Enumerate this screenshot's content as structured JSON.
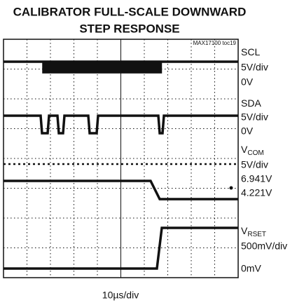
{
  "title": [
    "CALIBRATOR FULL-SCALE DOWNWARD",
    "STEP RESPONSE"
  ],
  "tag": "MAX17100 toc19",
  "channels": [
    {
      "name": "SCL",
      "sub": "",
      "labels": [
        "5V/div",
        "0V"
      ]
    },
    {
      "name": "SDA",
      "sub": "",
      "labels": [
        "5V/div",
        "0V"
      ]
    },
    {
      "name": "V",
      "sub": "COM",
      "labels": [
        "5V/div",
        "6.941V",
        "4.221V"
      ]
    },
    {
      "name": "V",
      "sub": "RSET",
      "labels": [
        "500mV/div",
        "0mV"
      ]
    }
  ],
  "timebase": "10µs/div"
}
